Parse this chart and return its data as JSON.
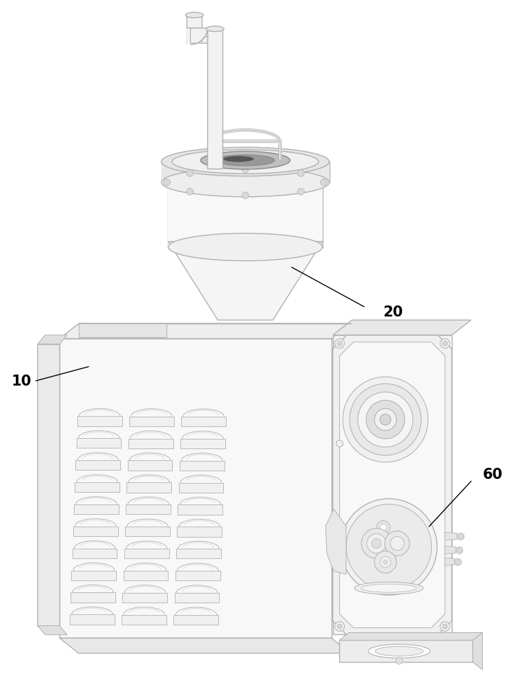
{
  "bg_color": "#ffffff",
  "lc": "#b0b0b0",
  "dc": "#888888",
  "text_color": "#000000",
  "fig_width": 7.57,
  "fig_height": 10.0,
  "dpi": 100
}
